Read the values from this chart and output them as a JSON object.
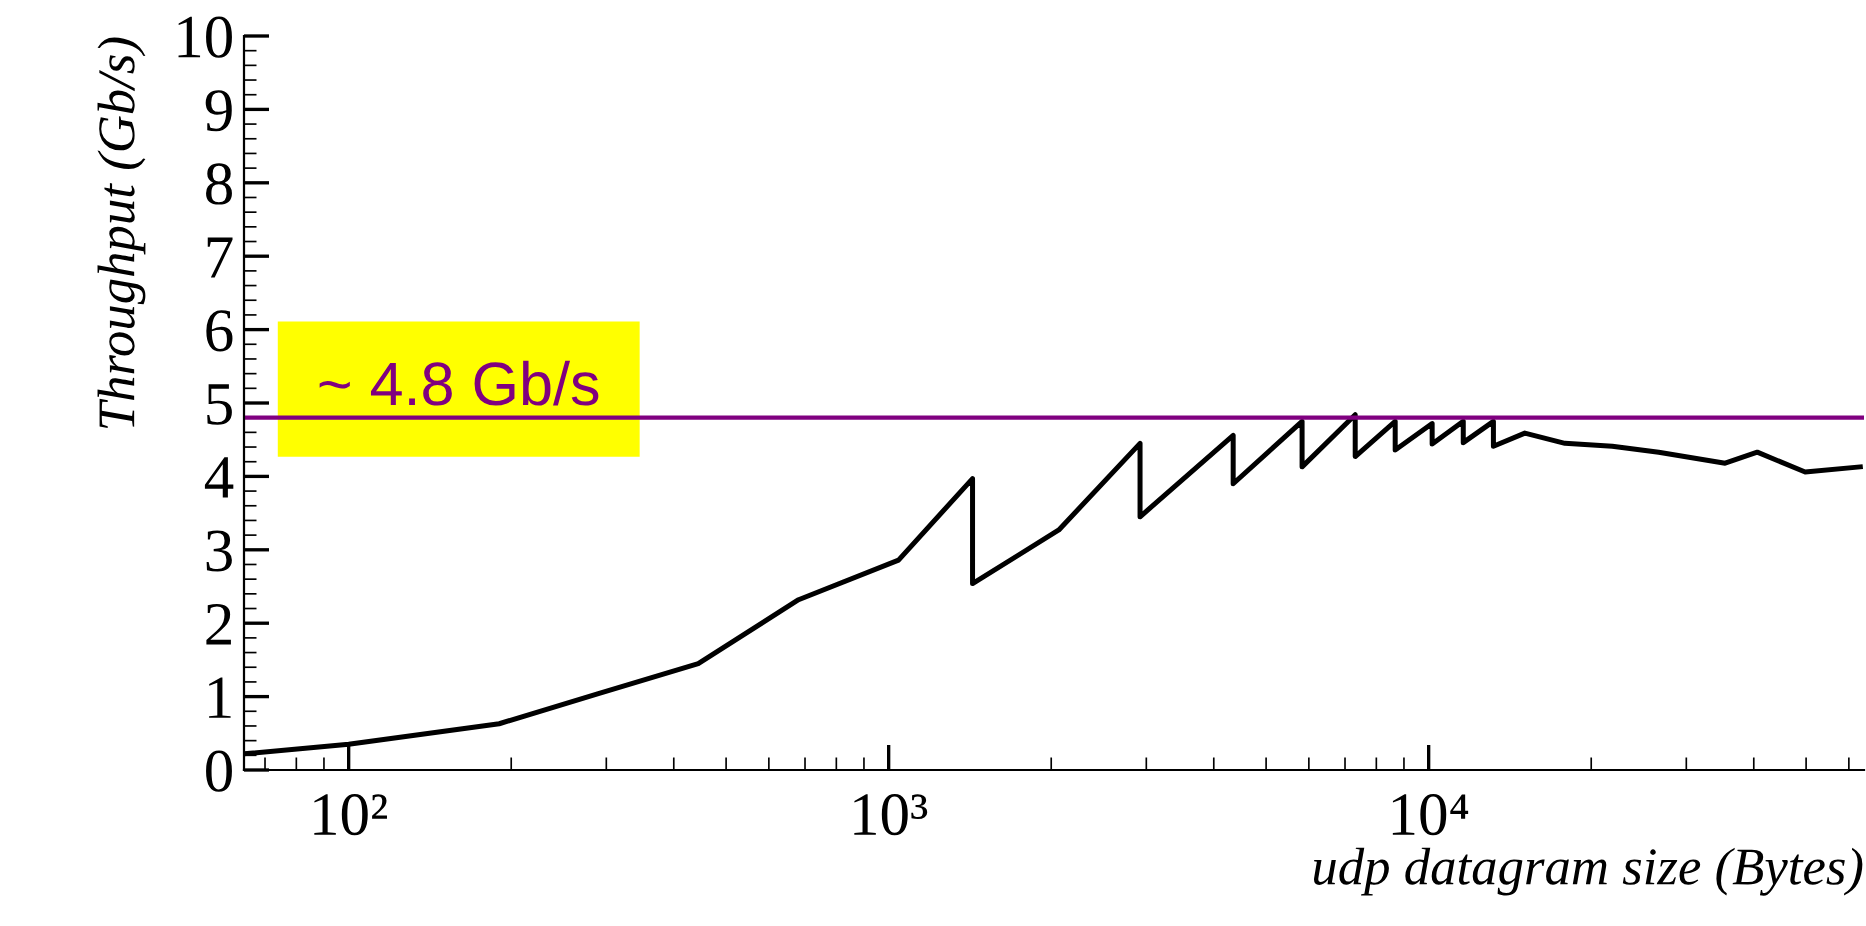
{
  "chart_data": {
    "type": "line",
    "xlabel": "udp datagram size (Bytes)",
    "ylabel": "Throughput (Gb/s)",
    "log": "x",
    "xlim": [
      64,
      64000
    ],
    "ylim": [
      0,
      10
    ],
    "xticks": [
      {
        "value": 100,
        "label": "10²"
      },
      {
        "value": 1000,
        "label": "10³"
      },
      {
        "value": 10000,
        "label": "10⁴"
      }
    ],
    "yticks": [
      0,
      1,
      2,
      3,
      4,
      5,
      6,
      7,
      8,
      9,
      10
    ],
    "grid": false,
    "marker": "none",
    "line_style": "solid",
    "series": [
      {
        "color": "#000000",
        "x": [
          64,
          100,
          190,
          290,
          444,
          681,
          1043,
          1430,
          1430,
          2066,
          2921,
          2921,
          4345,
          4345,
          5829,
          5829,
          7311,
          7311,
          8670,
          8670,
          10150,
          10150,
          11590,
          11590,
          13180,
          13180,
          15070,
          17880,
          21880,
          26670,
          35400,
          40600,
          49800,
          63000
        ],
        "values": [
          0.22,
          0.35,
          0.63,
          1.04,
          1.45,
          2.32,
          2.86,
          3.97,
          2.54,
          3.27,
          4.45,
          3.45,
          4.56,
          3.9,
          4.75,
          4.13,
          4.84,
          4.27,
          4.75,
          4.36,
          4.72,
          4.44,
          4.75,
          4.46,
          4.75,
          4.41,
          4.59,
          4.45,
          4.41,
          4.33,
          4.18,
          4.33,
          4.06,
          4.13
        ]
      }
    ],
    "ref_lines": [
      {
        "axis": "y",
        "value": 4.8,
        "label": "~ 4.8 Gb/s",
        "color": "#800080",
        "line_style": "solid"
      }
    ]
  }
}
